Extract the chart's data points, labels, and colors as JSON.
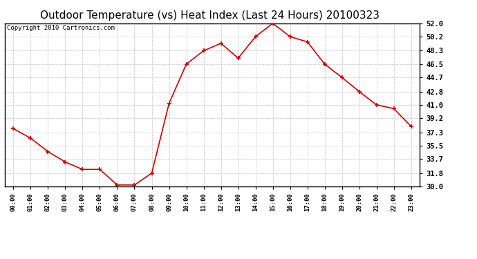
{
  "title": "Outdoor Temperature (vs) Heat Index (Last 24 Hours) 20100323",
  "copyright": "Copyright 2010 Cartronics.com",
  "x_labels": [
    "00:00",
    "01:00",
    "02:00",
    "03:00",
    "04:00",
    "05:00",
    "06:00",
    "07:00",
    "08:00",
    "09:00",
    "10:00",
    "11:00",
    "12:00",
    "13:00",
    "14:00",
    "15:00",
    "16:00",
    "17:00",
    "18:00",
    "19:00",
    "20:00",
    "21:00",
    "22:00",
    "23:00"
  ],
  "y_values": [
    37.8,
    36.5,
    34.7,
    33.3,
    32.3,
    32.3,
    30.2,
    30.2,
    31.8,
    41.2,
    46.5,
    48.3,
    49.3,
    47.3,
    50.2,
    52.0,
    50.2,
    49.5,
    46.5,
    44.7,
    42.8,
    41.0,
    40.5,
    38.1
  ],
  "line_color": "#cc0000",
  "marker_color": "#cc0000",
  "bg_color": "#ffffff",
  "grid_color": "#bbbbbb",
  "title_fontsize": 11,
  "copyright_fontsize": 6.5,
  "ylim_min": 30.0,
  "ylim_max": 52.0,
  "yticks": [
    30.0,
    31.8,
    33.7,
    35.5,
    37.3,
    39.2,
    41.0,
    42.8,
    44.7,
    46.5,
    48.3,
    50.2,
    52.0
  ]
}
